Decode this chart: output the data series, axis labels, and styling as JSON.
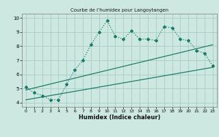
{
  "title": "Courbe de l’humidex pour Langoytangen",
  "xlabel": "Humidex (Indice chaleur)",
  "bg_color": "#cce8e0",
  "grid_color": "#aacec6",
  "line_color": "#1a7a6a",
  "xlim": [
    -0.5,
    23.5
  ],
  "ylim": [
    3.7,
    10.3
  ],
  "xticks": [
    0,
    1,
    2,
    3,
    4,
    5,
    6,
    7,
    8,
    9,
    10,
    11,
    12,
    13,
    14,
    15,
    16,
    17,
    18,
    19,
    20,
    21,
    22,
    23
  ],
  "yticks": [
    4,
    5,
    6,
    7,
    8,
    9,
    10
  ],
  "main_x": [
    0,
    1,
    2,
    3,
    4,
    5,
    6,
    7,
    8,
    9,
    10,
    11,
    12,
    13,
    14,
    15,
    16,
    17,
    18,
    19,
    20,
    21,
    22,
    23
  ],
  "main_y": [
    5.1,
    4.7,
    4.5,
    4.2,
    4.2,
    5.3,
    6.3,
    7.0,
    8.1,
    9.0,
    9.8,
    8.7,
    8.5,
    9.1,
    8.5,
    8.5,
    8.4,
    9.4,
    9.3,
    8.5,
    8.4,
    7.7,
    7.5,
    6.6
  ],
  "line1_x": [
    0,
    23
  ],
  "line1_y": [
    4.2,
    6.5
  ],
  "line2_x": [
    0,
    23
  ],
  "line2_y": [
    4.9,
    8.1
  ]
}
